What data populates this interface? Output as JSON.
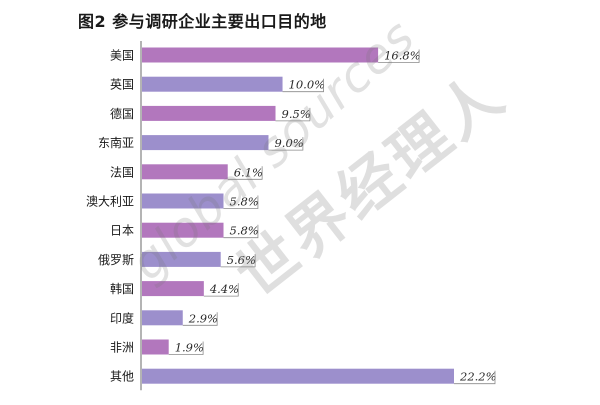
{
  "chart_data": {
    "type": "bar",
    "orientation": "horizontal",
    "title": "图2 参与调研企业主要出口目的地",
    "categories": [
      "美国",
      "英国",
      "德国",
      "东南亚",
      "法国",
      "澳大利亚",
      "日本",
      "俄罗斯",
      "韩国",
      "印度",
      "非洲",
      "其他"
    ],
    "values": [
      16.8,
      10.0,
      9.5,
      9.0,
      6.1,
      5.8,
      5.8,
      5.6,
      4.4,
      2.9,
      1.9,
      22.2
    ],
    "value_labels": [
      "16.8%",
      "10.0%",
      "9.5%",
      "9.0%",
      "6.1%",
      "5.8%",
      "5.8%",
      "5.6%",
      "4.4%",
      "2.9%",
      "1.9%",
      "22.2%"
    ],
    "xlabel": "",
    "ylabel": "",
    "xlim": [
      0,
      22.2
    ],
    "colors": [
      "#b277bd",
      "#9c8fcc"
    ]
  },
  "watermark": {
    "latin": "global sources",
    "cjk": "世界经理人"
  }
}
